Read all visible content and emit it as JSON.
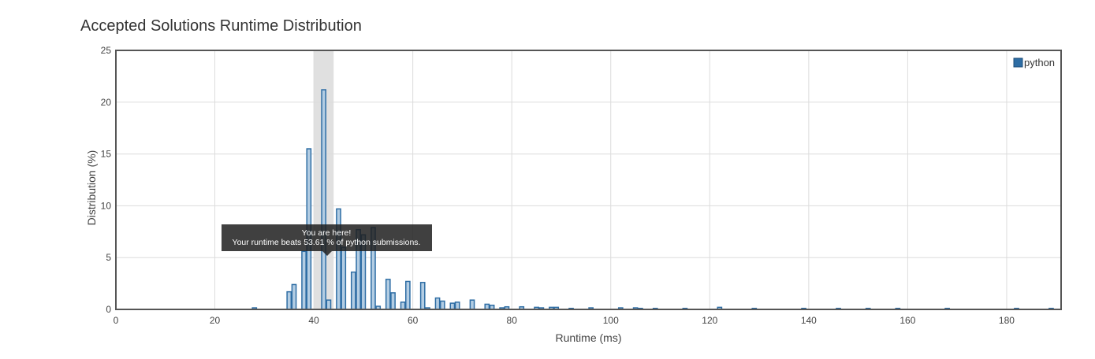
{
  "page": {
    "title": "Accepted Solutions Runtime Distribution"
  },
  "chart_data": {
    "type": "bar",
    "title": "Accepted Solutions Runtime Distribution",
    "xlabel": "Runtime (ms)",
    "ylabel": "Distribution (%)",
    "xlim": [
      0,
      191
    ],
    "ylim": [
      0,
      25
    ],
    "xticks": [
      0,
      20,
      40,
      60,
      80,
      100,
      120,
      140,
      160,
      180
    ],
    "yticks": [
      0,
      5,
      10,
      15,
      20,
      25
    ],
    "grid": true,
    "legend_position": "top-right",
    "highlight_range": [
      40,
      44
    ],
    "colors": {
      "bar_fill": "#b3cde3",
      "bar_stroke": "#2e6da4",
      "legend": "#2e6da4",
      "highlight": "#e0e0e0"
    },
    "series": [
      {
        "name": "python",
        "x": [
          28,
          35,
          36,
          38,
          39,
          42,
          43,
          45,
          46,
          48,
          49,
          50,
          52,
          53,
          55,
          56,
          58,
          59,
          62,
          63,
          65,
          66,
          68,
          69,
          72,
          75,
          76,
          78,
          79,
          82,
          85,
          86,
          88,
          89,
          92,
          96,
          102,
          105,
          106,
          109,
          115,
          122,
          129,
          139,
          146,
          152,
          158,
          168,
          182,
          189
        ],
        "values": [
          0.15,
          1.7,
          2.4,
          5.6,
          15.5,
          21.2,
          0.9,
          9.7,
          6.0,
          3.6,
          7.7,
          7.2,
          7.9,
          0.3,
          2.9,
          1.6,
          0.7,
          2.7,
          2.6,
          0.15,
          1.1,
          0.8,
          0.6,
          0.7,
          0.9,
          0.5,
          0.4,
          0.15,
          0.25,
          0.25,
          0.2,
          0.15,
          0.2,
          0.2,
          0.1,
          0.15,
          0.15,
          0.15,
          0.1,
          0.1,
          0.1,
          0.2,
          0.1,
          0.1,
          0.1,
          0.1,
          0.1,
          0.1,
          0.1,
          0.1
        ]
      }
    ],
    "tooltip": {
      "line1": "You are here!",
      "line2": "Your runtime beats 53.61 % of python submissions."
    }
  }
}
